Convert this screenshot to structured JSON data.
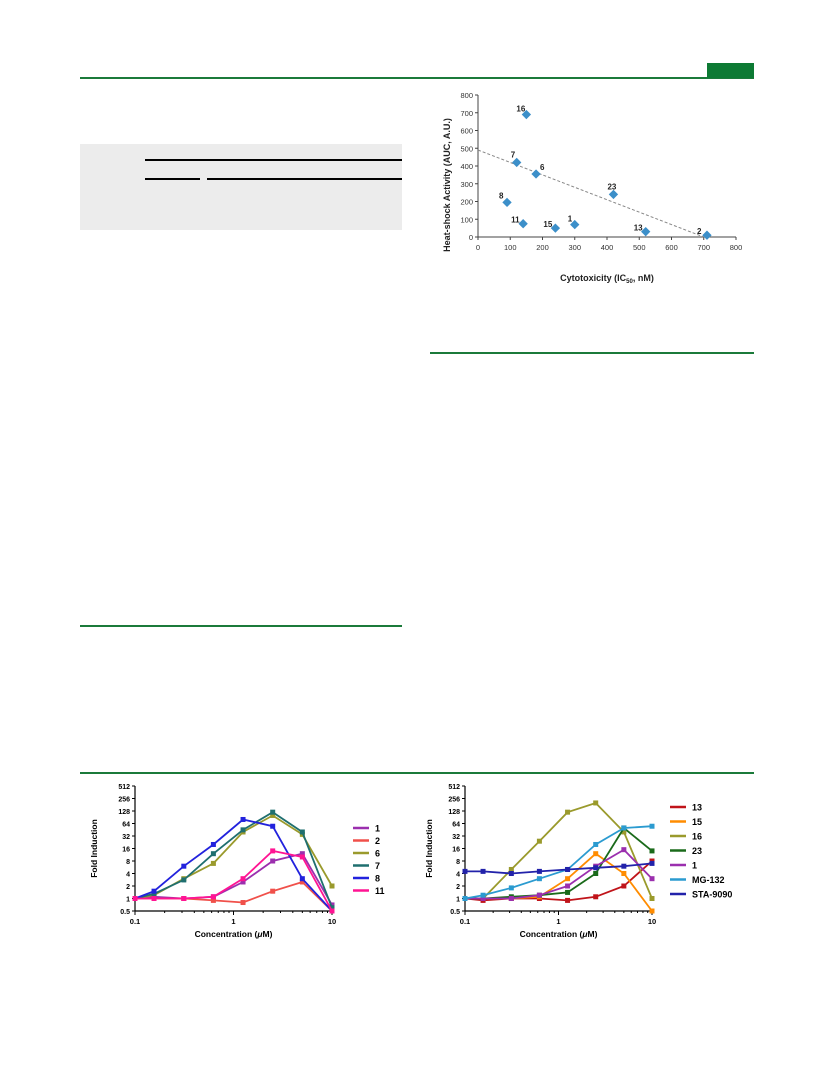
{
  "colors": {
    "journal_green": "#0d7a34",
    "rule_green": "#1b7a3a"
  },
  "scatter_figure": {
    "chart_data": {
      "type": "scatter",
      "xlabel_main": "Cytotoxicity (IC",
      "xlabel_sub": "50",
      "xlabel_tail": ", nM)",
      "ylabel": "Heat-shock Activity (AUC, A.U.)",
      "xlim": [
        0,
        800
      ],
      "ylim": [
        0,
        800
      ],
      "x_ticks": [
        "0",
        "100",
        "200",
        "300",
        "400",
        "500",
        "600",
        "700",
        "800"
      ],
      "y_ticks": [
        "0",
        "100",
        "200",
        "300",
        "400",
        "500",
        "600",
        "700",
        "800"
      ],
      "point_color": "#3c8fc9",
      "trendline": {
        "x": [
          0,
          700
        ],
        "y": [
          490,
          0
        ],
        "color": "#888888"
      },
      "points": [
        {
          "label": "16",
          "x": 150,
          "y": 690
        },
        {
          "label": "7",
          "x": 120,
          "y": 420
        },
        {
          "label": "6",
          "x": 180,
          "y": 355
        },
        {
          "label": "23",
          "x": 420,
          "y": 240
        },
        {
          "label": "8",
          "x": 90,
          "y": 195
        },
        {
          "label": "11",
          "x": 140,
          "y": 75
        },
        {
          "label": "15",
          "x": 240,
          "y": 50
        },
        {
          "label": "1",
          "x": 300,
          "y": 70
        },
        {
          "label": "13",
          "x": 520,
          "y": 30
        },
        {
          "label": "2",
          "x": 710,
          "y": 10
        }
      ]
    }
  },
  "panel_left": {
    "chart_data": {
      "type": "line",
      "ylabel": "Fold Induction",
      "xlabel_main": "Concentration (",
      "xlabel_mu": "μ",
      "xlabel_tail": "M)",
      "x_scale": "log",
      "y_scale": "log2",
      "x_ticks": [
        "0.1",
        "1",
        "10"
      ],
      "y_ticks": [
        "0.5",
        "1",
        "2",
        "4",
        "8",
        "16",
        "32",
        "64",
        "128",
        "256",
        "512"
      ],
      "x": [
        0.1,
        0.156,
        0.313,
        0.625,
        1.25,
        2.5,
        5,
        10
      ],
      "series": [
        {
          "name": "1",
          "color": "#9b2fae",
          "values": [
            1,
            1.1,
            1,
            1.1,
            2.5,
            8,
            12,
            0.7
          ]
        },
        {
          "name": "2",
          "color": "#f0504a",
          "values": [
            1,
            1,
            1,
            0.9,
            0.8,
            1.5,
            2.5,
            0.5
          ]
        },
        {
          "name": "6",
          "color": "#9a9a2c",
          "values": [
            1,
            1.2,
            3,
            7,
            40,
            100,
            35,
            2
          ]
        },
        {
          "name": "7",
          "color": "#1f6f6f",
          "values": [
            1,
            1.3,
            2.8,
            12,
            45,
            120,
            40,
            0.6
          ]
        },
        {
          "name": "8",
          "color": "#2222dd",
          "values": [
            1,
            1.5,
            6,
            20,
            80,
            55,
            3,
            0.5
          ]
        },
        {
          "name": "11",
          "color": "#ff1493",
          "values": [
            1,
            1,
            1,
            1.1,
            3,
            14,
            10,
            0.5
          ]
        }
      ]
    }
  },
  "panel_right": {
    "chart_data": {
      "type": "line",
      "ylabel": "Fold Induction",
      "xlabel_main": "Concentration (",
      "xlabel_mu": "μ",
      "xlabel_tail": "M)",
      "x_scale": "log",
      "y_scale": "log2",
      "x_ticks": [
        "0.1",
        "1",
        "10"
      ],
      "y_ticks": [
        "0.5",
        "1",
        "2",
        "4",
        "8",
        "16",
        "32",
        "64",
        "128",
        "256",
        "512"
      ],
      "x": [
        0.1,
        0.156,
        0.313,
        0.625,
        1.25,
        2.5,
        5,
        10
      ],
      "series": [
        {
          "name": "13",
          "color": "#c0141a",
          "values": [
            1,
            0.9,
            1,
            1,
            0.9,
            1.1,
            2,
            8
          ]
        },
        {
          "name": "15",
          "color": "#ff8c00",
          "values": [
            1,
            1,
            1,
            1.1,
            3,
            12,
            4,
            0.3
          ]
        },
        {
          "name": "16",
          "color": "#9a9a2c",
          "values": [
            1,
            1,
            5,
            24,
            120,
            200,
            40,
            1
          ]
        },
        {
          "name": "23",
          "color": "#1a6a1a",
          "values": [
            1,
            1,
            1.1,
            1.2,
            1.4,
            4,
            50,
            14
          ]
        },
        {
          "name": "1",
          "color": "#9b2fae",
          "values": [
            1,
            1,
            1,
            1.2,
            2,
            6,
            15,
            3
          ]
        },
        {
          "name": "MG-132",
          "color": "#2b9bd0",
          "values": [
            1,
            1.2,
            1.8,
            3,
            5,
            20,
            50,
            55
          ]
        },
        {
          "name": "STA-9090",
          "color": "#2222aa",
          "values": [
            4.5,
            4.5,
            4,
            4.5,
            5,
            5.5,
            6,
            7
          ]
        }
      ]
    }
  }
}
